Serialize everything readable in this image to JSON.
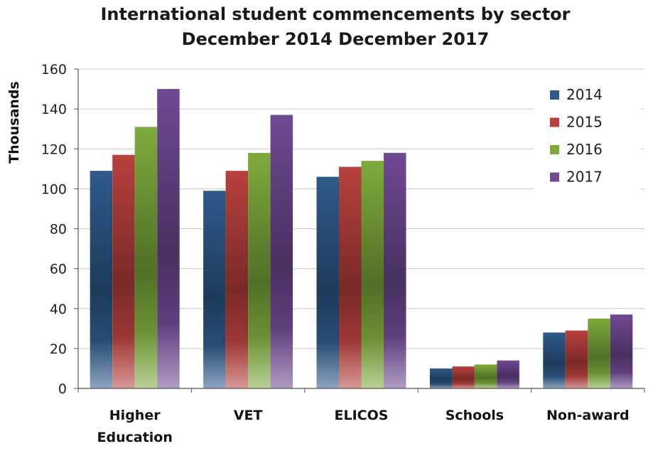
{
  "chart_data": {
    "type": "bar",
    "title": "International student commencements by sector",
    "subtitle": "December 2014 December 2017",
    "xlabel": "",
    "ylabel": "Thousands",
    "ylim": [
      0,
      160
    ],
    "yticks": [
      0,
      20,
      40,
      60,
      80,
      100,
      120,
      140,
      160
    ],
    "grid": true,
    "legend_position": "top-right",
    "categories": [
      "Higher Education",
      "VET",
      "ELICOS",
      "Schools",
      "Non-award"
    ],
    "category_lines": [
      [
        "Higher",
        "Education"
      ],
      [
        "VET"
      ],
      [
        "ELICOS"
      ],
      [
        "Schools"
      ],
      [
        "Non-award"
      ]
    ],
    "series": [
      {
        "name": "2014",
        "values": [
          109,
          99,
          106,
          10,
          28
        ],
        "color": "#2e5a8a"
      },
      {
        "name": "2015",
        "values": [
          117,
          109,
          111,
          11,
          29
        ],
        "color": "#b8413d"
      },
      {
        "name": "2016",
        "values": [
          131,
          118,
          114,
          12,
          35
        ],
        "color": "#7eab3c"
      },
      {
        "name": "2017",
        "values": [
          150,
          137,
          118,
          14,
          37
        ],
        "color": "#6f4a93"
      }
    ]
  }
}
